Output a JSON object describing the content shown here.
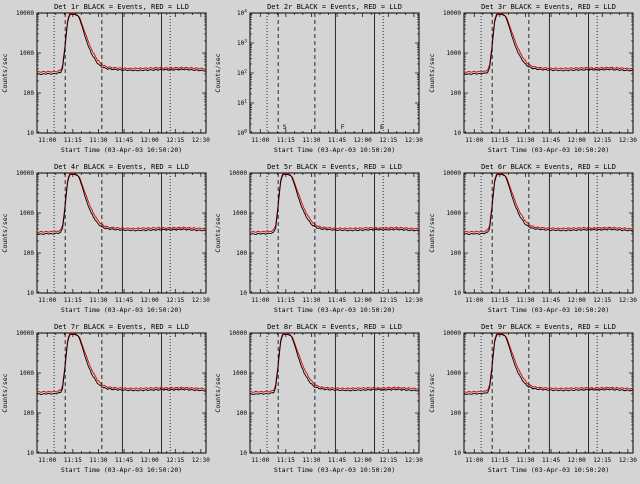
{
  "window": {
    "bg": "#d4d4d4",
    "fg": "#000000",
    "red": "#dd0000"
  },
  "chart_data": {
    "type": "line",
    "grid_layout": "3x3",
    "xlabel": "Start Time (03-Apr-03 10:50:20)",
    "ylabel": "Counts/sec",
    "x_unit": "minutes after 11:00",
    "x_range": [
      -6,
      93
    ],
    "xticks": [
      {
        "x": 0,
        "label": "11:00"
      },
      {
        "x": 15,
        "label": "11:15"
      },
      {
        "x": 30,
        "label": "11:30"
      },
      {
        "x": 45,
        "label": "11:45"
      },
      {
        "x": 60,
        "label": "12:00"
      },
      {
        "x": 75,
        "label": "12:15"
      },
      {
        "x": 90,
        "label": "12:30"
      }
    ],
    "x_minor_tick_step": 5,
    "yscale": "log",
    "vlines": [
      {
        "x": 4,
        "style": "dotted"
      },
      {
        "x": 10.5,
        "style": "dashed"
      },
      {
        "x": 32,
        "style": "dashed"
      },
      {
        "x": 44,
        "style": "solid"
      },
      {
        "x": 67,
        "style": "solid"
      },
      {
        "x": 72,
        "style": "dotted"
      }
    ],
    "series": [
      {
        "name": "LLD",
        "color": "#dd0000",
        "points": [
          [
            -6,
            335
          ],
          [
            0,
            340
          ],
          [
            6,
            345
          ],
          [
            8,
            380
          ],
          [
            9,
            500
          ],
          [
            10,
            1100
          ],
          [
            11,
            3000
          ],
          [
            12,
            6800
          ],
          [
            13,
            9600
          ],
          [
            15,
            9800
          ],
          [
            17,
            9400
          ],
          [
            19,
            7800
          ],
          [
            21,
            4400
          ],
          [
            23,
            2600
          ],
          [
            25,
            1500
          ],
          [
            27,
            1000
          ],
          [
            29,
            720
          ],
          [
            31,
            560
          ],
          [
            33,
            480
          ],
          [
            36,
            440
          ],
          [
            40,
            425
          ],
          [
            45,
            415
          ],
          [
            50,
            410
          ],
          [
            55,
            415
          ],
          [
            60,
            420
          ],
          [
            65,
            425
          ],
          [
            70,
            420
          ],
          [
            75,
            425
          ],
          [
            80,
            430
          ],
          [
            85,
            420
          ],
          [
            90,
            410
          ],
          [
            93,
            405
          ]
        ]
      },
      {
        "name": "Events",
        "color": "#000000",
        "points": [
          [
            -6,
            300
          ],
          [
            -3,
            295
          ],
          [
            0,
            305
          ],
          [
            3,
            300
          ],
          [
            6,
            310
          ],
          [
            8,
            330
          ],
          [
            9,
            420
          ],
          [
            10,
            900
          ],
          [
            11,
            2500
          ],
          [
            12,
            6000
          ],
          [
            13,
            8800
          ],
          [
            14,
            9300
          ],
          [
            16,
            9200
          ],
          [
            18,
            8500
          ],
          [
            19,
            7000
          ],
          [
            20,
            5200
          ],
          [
            21,
            3800
          ],
          [
            22,
            2700
          ],
          [
            24,
            1500
          ],
          [
            26,
            950
          ],
          [
            28,
            680
          ],
          [
            30,
            520
          ],
          [
            32,
            450
          ],
          [
            34,
            415
          ],
          [
            36,
            400
          ],
          [
            40,
            385
          ],
          [
            44,
            375
          ],
          [
            48,
            370
          ],
          [
            52,
            365
          ],
          [
            56,
            370
          ],
          [
            60,
            375
          ],
          [
            64,
            380
          ],
          [
            68,
            385
          ],
          [
            72,
            380
          ],
          [
            76,
            385
          ],
          [
            80,
            390
          ],
          [
            84,
            380
          ],
          [
            88,
            370
          ],
          [
            91,
            365
          ],
          [
            93,
            360
          ]
        ]
      }
    ],
    "panels": [
      {
        "title": "Det 1r BLACK = Events, RED = LLD",
        "has_data": true,
        "y_range": [
          10,
          10000
        ],
        "ytick_style": "plain"
      },
      {
        "title": "Det 2r BLACK = Events, RED = LLD",
        "has_data": false,
        "y_range": [
          1,
          10000
        ],
        "ytick_style": "exponent",
        "annotations": [
          {
            "label": "S",
            "x": 12
          },
          {
            "label": "F",
            "x": 46
          },
          {
            "label": "E",
            "x": 69
          }
        ]
      },
      {
        "title": "Det 3r BLACK = Events, RED = LLD",
        "has_data": true,
        "y_range": [
          10,
          10000
        ],
        "ytick_style": "plain"
      },
      {
        "title": "Det 4r BLACK = Events, RED = LLD",
        "has_data": true,
        "y_range": [
          10,
          10000
        ],
        "ytick_style": "plain"
      },
      {
        "title": "Det 5r BLACK = Events, RED = LLD",
        "has_data": true,
        "y_range": [
          10,
          10000
        ],
        "ytick_style": "plain"
      },
      {
        "title": "Det 6r BLACK = Events, RED = LLD",
        "has_data": true,
        "y_range": [
          10,
          10000
        ],
        "ytick_style": "plain"
      },
      {
        "title": "Det 7r BLACK = Events, RED = LLD",
        "has_data": true,
        "y_range": [
          10,
          10000
        ],
        "ytick_style": "plain"
      },
      {
        "title": "Det 8r BLACK = Events, RED = LLD",
        "has_data": true,
        "y_range": [
          10,
          10000
        ],
        "ytick_style": "plain"
      },
      {
        "title": "Det 9r BLACK = Events, RED = LLD",
        "has_data": true,
        "y_range": [
          10,
          10000
        ],
        "ytick_style": "plain"
      }
    ]
  }
}
